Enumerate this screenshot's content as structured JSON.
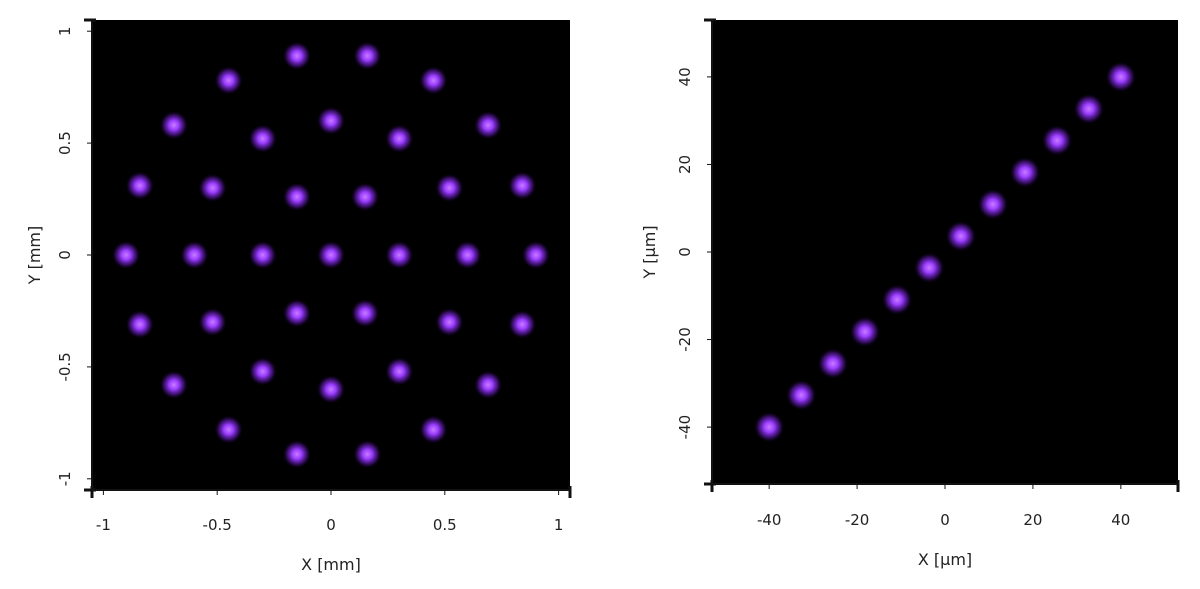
{
  "colors": {
    "background": "#000000",
    "spot": "#9a3cff",
    "spot_core": "#c77dff",
    "axis": "#111111",
    "page": "#ffffff"
  },
  "chart_data": [
    {
      "type": "scatter",
      "xlabel": "X [mm]",
      "ylabel": "Y [mm]",
      "xlim": [
        -1.05,
        1.05
      ],
      "ylim": [
        -1.05,
        1.05
      ],
      "xticks": [
        -1,
        -0.5,
        0,
        0.5,
        1
      ],
      "xtick_labels": [
        "-1",
        "-0.5",
        "0",
        "0.5",
        "1"
      ],
      "yticks": [
        -1,
        -0.5,
        0,
        0.5,
        1
      ],
      "ytick_labels": [
        "-1",
        "-0.5",
        "0",
        "0.5",
        "1"
      ],
      "grid": false,
      "points": [
        {
          "x": -0.15,
          "y": 0.89
        },
        {
          "x": 0.16,
          "y": 0.89
        },
        {
          "x": -0.45,
          "y": 0.78
        },
        {
          "x": 0.45,
          "y": 0.78
        },
        {
          "x": -0.69,
          "y": 0.58
        },
        {
          "x": 0.69,
          "y": 0.58
        },
        {
          "x": -0.3,
          "y": 0.52
        },
        {
          "x": 0.0,
          "y": 0.6
        },
        {
          "x": 0.3,
          "y": 0.52
        },
        {
          "x": -0.84,
          "y": 0.31
        },
        {
          "x": 0.84,
          "y": 0.31
        },
        {
          "x": -0.52,
          "y": 0.3
        },
        {
          "x": 0.52,
          "y": 0.3
        },
        {
          "x": -0.15,
          "y": 0.26
        },
        {
          "x": 0.15,
          "y": 0.26
        },
        {
          "x": -0.9,
          "y": 0.0
        },
        {
          "x": -0.6,
          "y": 0.0
        },
        {
          "x": -0.3,
          "y": 0.0
        },
        {
          "x": 0.0,
          "y": 0.0
        },
        {
          "x": 0.3,
          "y": 0.0
        },
        {
          "x": 0.6,
          "y": 0.0
        },
        {
          "x": 0.9,
          "y": 0.0
        },
        {
          "x": -0.84,
          "y": -0.31
        },
        {
          "x": 0.84,
          "y": -0.31
        },
        {
          "x": -0.52,
          "y": -0.3
        },
        {
          "x": 0.52,
          "y": -0.3
        },
        {
          "x": -0.15,
          "y": -0.26
        },
        {
          "x": 0.15,
          "y": -0.26
        },
        {
          "x": -0.3,
          "y": -0.52
        },
        {
          "x": 0.0,
          "y": -0.6
        },
        {
          "x": 0.3,
          "y": -0.52
        },
        {
          "x": -0.69,
          "y": -0.58
        },
        {
          "x": 0.69,
          "y": -0.58
        },
        {
          "x": -0.45,
          "y": -0.78
        },
        {
          "x": 0.45,
          "y": -0.78
        },
        {
          "x": -0.15,
          "y": -0.89
        },
        {
          "x": 0.16,
          "y": -0.89
        }
      ]
    },
    {
      "type": "scatter",
      "xlabel": "X [µm]",
      "ylabel": "Y [µm]",
      "xlim": [
        -53,
        53
      ],
      "ylim": [
        -53,
        53
      ],
      "xticks": [
        -40,
        -20,
        0,
        20,
        40
      ],
      "xtick_labels": [
        "-40",
        "-20",
        "0",
        "20",
        "40"
      ],
      "yticks": [
        -40,
        -20,
        0,
        20,
        40
      ],
      "ytick_labels": [
        "-40",
        "-20",
        "0",
        "20",
        "40"
      ],
      "grid": false,
      "points": [
        {
          "x": -40,
          "y": -40
        },
        {
          "x": -32.7,
          "y": -32.7
        },
        {
          "x": -25.5,
          "y": -25.5
        },
        {
          "x": -18.2,
          "y": -18.2
        },
        {
          "x": -10.9,
          "y": -10.9
        },
        {
          "x": -3.6,
          "y": -3.6
        },
        {
          "x": 3.6,
          "y": 3.6
        },
        {
          "x": 10.9,
          "y": 10.9
        },
        {
          "x": 18.2,
          "y": 18.2
        },
        {
          "x": 25.5,
          "y": 25.5
        },
        {
          "x": 32.7,
          "y": 32.7
        },
        {
          "x": 40,
          "y": 40
        }
      ]
    }
  ]
}
